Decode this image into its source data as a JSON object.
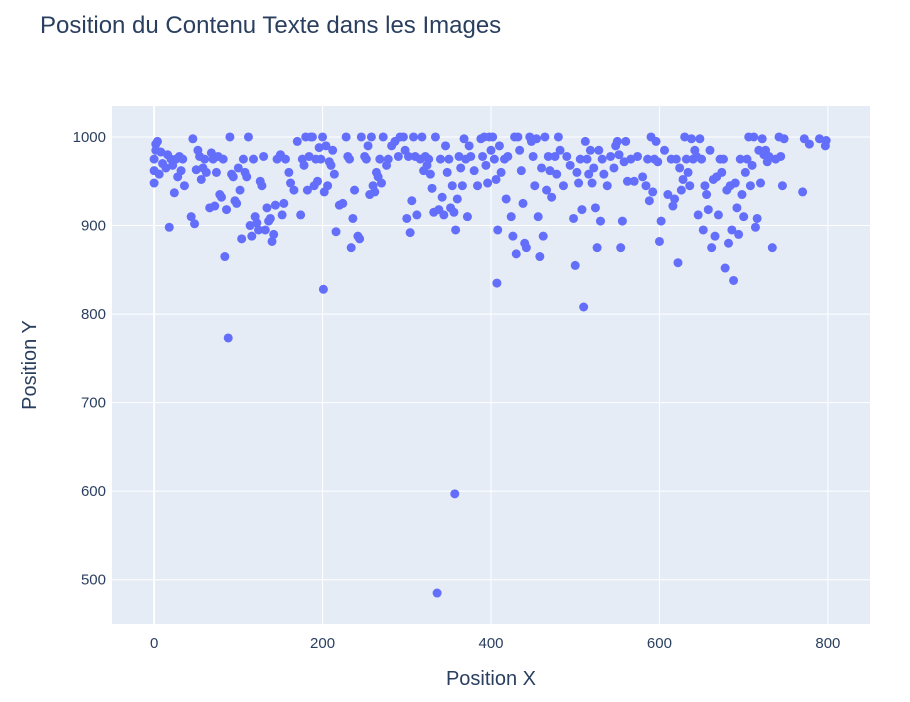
{
  "chart_data": {
    "type": "scatter",
    "title": "Position du Contenu Texte dans les Images",
    "xlabel": "Position X",
    "ylabel": "Position Y",
    "xlim": [
      -50,
      850
    ],
    "ylim": [
      450,
      1035
    ],
    "xticks": [
      0,
      200,
      400,
      600,
      800
    ],
    "yticks": [
      500,
      600,
      700,
      800,
      900,
      1000
    ],
    "grid": true,
    "colors": {
      "marker": "#636efa",
      "plot_bg": "#e5ecf6",
      "grid": "#ffffff",
      "text": "#2a3f5f"
    },
    "points": [
      [
        0,
        948
      ],
      [
        0,
        962
      ],
      [
        0,
        975
      ],
      [
        2,
        985
      ],
      [
        2,
        992
      ],
      [
        4,
        995
      ],
      [
        6,
        958
      ],
      [
        8,
        983
      ],
      [
        10,
        970
      ],
      [
        14,
        965
      ],
      [
        16,
        980
      ],
      [
        18,
        898
      ],
      [
        20,
        975
      ],
      [
        22,
        968
      ],
      [
        24,
        937
      ],
      [
        26,
        975
      ],
      [
        28,
        955
      ],
      [
        30,
        978
      ],
      [
        32,
        962
      ],
      [
        34,
        975
      ],
      [
        36,
        945
      ],
      [
        44,
        910
      ],
      [
        46,
        998
      ],
      [
        48,
        902
      ],
      [
        50,
        963
      ],
      [
        52,
        985
      ],
      [
        54,
        978
      ],
      [
        56,
        952
      ],
      [
        58,
        965
      ],
      [
        60,
        975
      ],
      [
        62,
        960
      ],
      [
        66,
        920
      ],
      [
        68,
        982
      ],
      [
        70,
        975
      ],
      [
        72,
        922
      ],
      [
        74,
        960
      ],
      [
        76,
        978
      ],
      [
        78,
        935
      ],
      [
        80,
        932
      ],
      [
        82,
        975
      ],
      [
        84,
        865
      ],
      [
        86,
        918
      ],
      [
        88,
        773
      ],
      [
        90,
        1000
      ],
      [
        92,
        958
      ],
      [
        94,
        955
      ],
      [
        96,
        928
      ],
      [
        98,
        925
      ],
      [
        100,
        965
      ],
      [
        102,
        940
      ],
      [
        104,
        885
      ],
      [
        106,
        975
      ],
      [
        108,
        960
      ],
      [
        110,
        955
      ],
      [
        112,
        1000
      ],
      [
        114,
        900
      ],
      [
        116,
        888
      ],
      [
        118,
        975
      ],
      [
        120,
        910
      ],
      [
        122,
        903
      ],
      [
        124,
        895
      ],
      [
        126,
        950
      ],
      [
        128,
        945
      ],
      [
        130,
        978
      ],
      [
        132,
        895
      ],
      [
        134,
        920
      ],
      [
        136,
        905
      ],
      [
        138,
        908
      ],
      [
        140,
        882
      ],
      [
        142,
        890
      ],
      [
        144,
        923
      ],
      [
        146,
        975
      ],
      [
        150,
        980
      ],
      [
        152,
        912
      ],
      [
        154,
        925
      ],
      [
        156,
        975
      ],
      [
        160,
        960
      ],
      [
        162,
        948
      ],
      [
        166,
        940
      ],
      [
        170,
        995
      ],
      [
        174,
        912
      ],
      [
        176,
        975
      ],
      [
        178,
        968
      ],
      [
        180,
        1000
      ],
      [
        182,
        940
      ],
      [
        184,
        978
      ],
      [
        186,
        1000
      ],
      [
        188,
        1000
      ],
      [
        190,
        945
      ],
      [
        192,
        975
      ],
      [
        194,
        950
      ],
      [
        196,
        988
      ],
      [
        198,
        975
      ],
      [
        200,
        1000
      ],
      [
        201,
        828
      ],
      [
        202,
        938
      ],
      [
        204,
        990
      ],
      [
        206,
        945
      ],
      [
        208,
        972
      ],
      [
        210,
        968
      ],
      [
        212,
        985
      ],
      [
        214,
        958
      ],
      [
        216,
        893
      ],
      [
        220,
        923
      ],
      [
        224,
        925
      ],
      [
        228,
        1000
      ],
      [
        230,
        978
      ],
      [
        232,
        975
      ],
      [
        234,
        875
      ],
      [
        236,
        908
      ],
      [
        238,
        940
      ],
      [
        242,
        888
      ],
      [
        244,
        885
      ],
      [
        246,
        1000
      ],
      [
        250,
        978
      ],
      [
        252,
        975
      ],
      [
        254,
        990
      ],
      [
        256,
        935
      ],
      [
        258,
        1000
      ],
      [
        260,
        945
      ],
      [
        262,
        938
      ],
      [
        264,
        960
      ],
      [
        266,
        955
      ],
      [
        268,
        975
      ],
      [
        270,
        948
      ],
      [
        272,
        1000
      ],
      [
        276,
        968
      ],
      [
        278,
        975
      ],
      [
        282,
        990
      ],
      [
        286,
        995
      ],
      [
        290,
        978
      ],
      [
        292,
        1000
      ],
      [
        296,
        1000
      ],
      [
        298,
        985
      ],
      [
        300,
        908
      ],
      [
        302,
        978
      ],
      [
        304,
        892
      ],
      [
        306,
        928
      ],
      [
        308,
        1000
      ],
      [
        310,
        978
      ],
      [
        312,
        912
      ],
      [
        316,
        975
      ],
      [
        318,
        1000
      ],
      [
        320,
        962
      ],
      [
        322,
        978
      ],
      [
        324,
        968
      ],
      [
        326,
        975
      ],
      [
        328,
        958
      ],
      [
        330,
        942
      ],
      [
        332,
        915
      ],
      [
        334,
        1000
      ],
      [
        336,
        485
      ],
      [
        338,
        918
      ],
      [
        340,
        975
      ],
      [
        342,
        932
      ],
      [
        344,
        912
      ],
      [
        346,
        990
      ],
      [
        348,
        960
      ],
      [
        350,
        975
      ],
      [
        352,
        920
      ],
      [
        354,
        945
      ],
      [
        356,
        915
      ],
      [
        357,
        597
      ],
      [
        358,
        895
      ],
      [
        360,
        930
      ],
      [
        362,
        978
      ],
      [
        364,
        965
      ],
      [
        366,
        945
      ],
      [
        368,
        998
      ],
      [
        370,
        975
      ],
      [
        372,
        910
      ],
      [
        374,
        990
      ],
      [
        376,
        978
      ],
      [
        380,
        962
      ],
      [
        384,
        945
      ],
      [
        388,
        998
      ],
      [
        390,
        978
      ],
      [
        392,
        1000
      ],
      [
        394,
        968
      ],
      [
        396,
        948
      ],
      [
        398,
        1000
      ],
      [
        400,
        985
      ],
      [
        402,
        1000
      ],
      [
        404,
        975
      ],
      [
        406,
        952
      ],
      [
        407,
        835
      ],
      [
        408,
        895
      ],
      [
        410,
        990
      ],
      [
        412,
        960
      ],
      [
        416,
        975
      ],
      [
        418,
        930
      ],
      [
        420,
        978
      ],
      [
        424,
        910
      ],
      [
        426,
        888
      ],
      [
        428,
        1000
      ],
      [
        430,
        868
      ],
      [
        432,
        1000
      ],
      [
        434,
        985
      ],
      [
        436,
        962
      ],
      [
        438,
        925
      ],
      [
        440,
        880
      ],
      [
        442,
        875
      ],
      [
        446,
        1000
      ],
      [
        448,
        995
      ],
      [
        450,
        978
      ],
      [
        452,
        945
      ],
      [
        454,
        998
      ],
      [
        456,
        910
      ],
      [
        458,
        865
      ],
      [
        460,
        965
      ],
      [
        462,
        888
      ],
      [
        464,
        1000
      ],
      [
        466,
        940
      ],
      [
        468,
        978
      ],
      [
        470,
        962
      ],
      [
        472,
        932
      ],
      [
        476,
        978
      ],
      [
        478,
        958
      ],
      [
        480,
        1000
      ],
      [
        482,
        985
      ],
      [
        486,
        945
      ],
      [
        490,
        978
      ],
      [
        494,
        968
      ],
      [
        498,
        908
      ],
      [
        500,
        855
      ],
      [
        502,
        960
      ],
      [
        504,
        948
      ],
      [
        506,
        975
      ],
      [
        508,
        918
      ],
      [
        510,
        808
      ],
      [
        512,
        995
      ],
      [
        514,
        975
      ],
      [
        516,
        958
      ],
      [
        518,
        985
      ],
      [
        520,
        948
      ],
      [
        522,
        965
      ],
      [
        524,
        920
      ],
      [
        526,
        875
      ],
      [
        528,
        985
      ],
      [
        530,
        905
      ],
      [
        532,
        975
      ],
      [
        534,
        958
      ],
      [
        538,
        945
      ],
      [
        542,
        978
      ],
      [
        546,
        965
      ],
      [
        548,
        990
      ],
      [
        550,
        995
      ],
      [
        552,
        980
      ],
      [
        554,
        875
      ],
      [
        556,
        905
      ],
      [
        558,
        972
      ],
      [
        560,
        995
      ],
      [
        562,
        950
      ],
      [
        566,
        975
      ],
      [
        570,
        950
      ],
      [
        574,
        978
      ],
      [
        580,
        955
      ],
      [
        584,
        945
      ],
      [
        586,
        975
      ],
      [
        588,
        928
      ],
      [
        590,
        1000
      ],
      [
        592,
        938
      ],
      [
        594,
        975
      ],
      [
        596,
        995
      ],
      [
        598,
        972
      ],
      [
        600,
        882
      ],
      [
        602,
        905
      ],
      [
        606,
        985
      ],
      [
        610,
        935
      ],
      [
        614,
        975
      ],
      [
        616,
        922
      ],
      [
        618,
        930
      ],
      [
        620,
        975
      ],
      [
        622,
        858
      ],
      [
        624,
        965
      ],
      [
        626,
        940
      ],
      [
        628,
        952
      ],
      [
        630,
        1000
      ],
      [
        632,
        975
      ],
      [
        634,
        960
      ],
      [
        636,
        945
      ],
      [
        638,
        998
      ],
      [
        640,
        975
      ],
      [
        642,
        985
      ],
      [
        644,
        978
      ],
      [
        646,
        912
      ],
      [
        648,
        998
      ],
      [
        650,
        975
      ],
      [
        652,
        895
      ],
      [
        654,
        945
      ],
      [
        656,
        935
      ],
      [
        658,
        918
      ],
      [
        660,
        985
      ],
      [
        662,
        875
      ],
      [
        664,
        952
      ],
      [
        666,
        888
      ],
      [
        668,
        955
      ],
      [
        670,
        912
      ],
      [
        672,
        975
      ],
      [
        674,
        960
      ],
      [
        676,
        975
      ],
      [
        678,
        852
      ],
      [
        680,
        940
      ],
      [
        682,
        880
      ],
      [
        684,
        945
      ],
      [
        686,
        895
      ],
      [
        688,
        838
      ],
      [
        690,
        948
      ],
      [
        692,
        920
      ],
      [
        694,
        890
      ],
      [
        696,
        975
      ],
      [
        698,
        935
      ],
      [
        700,
        910
      ],
      [
        702,
        960
      ],
      [
        704,
        975
      ],
      [
        706,
        1000
      ],
      [
        708,
        945
      ],
      [
        710,
        968
      ],
      [
        712,
        1000
      ],
      [
        714,
        898
      ],
      [
        716,
        908
      ],
      [
        718,
        985
      ],
      [
        720,
        948
      ],
      [
        722,
        998
      ],
      [
        724,
        980
      ],
      [
        726,
        985
      ],
      [
        728,
        972
      ],
      [
        730,
        978
      ],
      [
        734,
        875
      ],
      [
        738,
        975
      ],
      [
        742,
        1000
      ],
      [
        744,
        978
      ],
      [
        746,
        945
      ],
      [
        748,
        998
      ],
      [
        770,
        938
      ],
      [
        772,
        998
      ],
      [
        778,
        992
      ],
      [
        790,
        998
      ],
      [
        797,
        990
      ],
      [
        798,
        996
      ]
    ]
  }
}
